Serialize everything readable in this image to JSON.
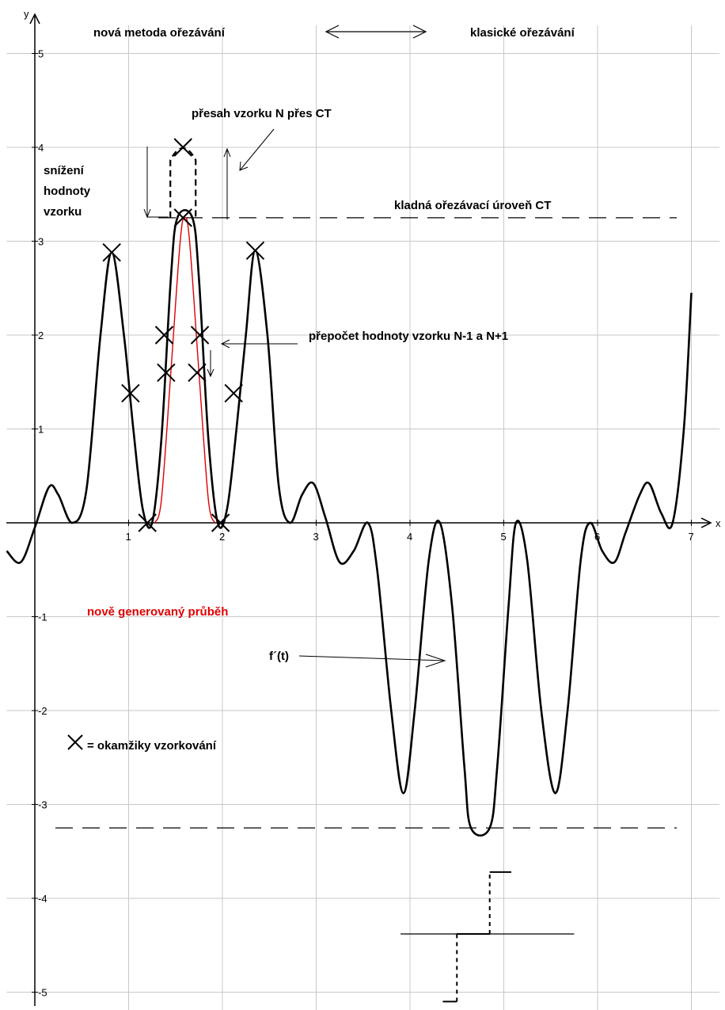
{
  "chart_data": {
    "type": "line",
    "xlabel": "x",
    "ylabel": "y",
    "xlim": [
      -0.3,
      7.3
    ],
    "ylim": [
      -5.2,
      5.3
    ],
    "grid": true,
    "x_ticks": [
      1,
      2,
      3,
      4,
      5,
      6,
      7
    ],
    "y_ticks": [
      -5,
      -4,
      -3,
      -2,
      -1,
      1,
      2,
      3,
      4,
      5
    ],
    "clip_levels": [
      3.25,
      -3.25
    ],
    "series": [
      {
        "color": "#000000",
        "points": [
          [
            -0.3,
            -0.3
          ],
          [
            -0.15,
            -0.42
          ],
          [
            0.0,
            -0.05
          ],
          [
            0.15,
            0.38
          ],
          [
            0.25,
            0.3
          ],
          [
            0.4,
            0.0
          ],
          [
            0.55,
            0.35
          ],
          [
            0.7,
            2.0
          ],
          [
            0.82,
            2.88
          ],
          [
            0.95,
            2.0
          ],
          [
            1.05,
            1.0
          ],
          [
            1.15,
            0.15
          ],
          [
            1.25,
            0.0
          ],
          [
            1.35,
            0.9
          ],
          [
            1.45,
            2.6
          ],
          [
            1.52,
            3.25
          ],
          [
            1.68,
            3.25
          ],
          [
            1.75,
            2.6
          ],
          [
            1.85,
            0.9
          ],
          [
            1.95,
            0.0
          ],
          [
            2.05,
            0.15
          ],
          [
            2.15,
            1.0
          ],
          [
            2.25,
            2.0
          ],
          [
            2.35,
            2.9
          ],
          [
            2.48,
            2.0
          ],
          [
            2.6,
            0.4
          ],
          [
            2.72,
            0.0
          ],
          [
            2.85,
            0.3
          ],
          [
            2.97,
            0.42
          ],
          [
            3.1,
            0.05
          ],
          [
            3.25,
            -0.42
          ],
          [
            3.4,
            -0.3
          ],
          [
            3.55,
            0.0
          ],
          [
            3.65,
            -0.5
          ],
          [
            3.8,
            -2.0
          ],
          [
            3.93,
            -2.88
          ],
          [
            4.05,
            -2.0
          ],
          [
            4.2,
            -0.4
          ],
          [
            4.32,
            0.0
          ],
          [
            4.45,
            -0.9
          ],
          [
            4.58,
            -2.6
          ],
          [
            4.65,
            -3.25
          ],
          [
            4.85,
            -3.25
          ],
          [
            4.93,
            -2.6
          ],
          [
            5.05,
            -0.9
          ],
          [
            5.13,
            0.0
          ],
          [
            5.25,
            -0.4
          ],
          [
            5.4,
            -2.0
          ],
          [
            5.55,
            -2.88
          ],
          [
            5.68,
            -2.0
          ],
          [
            5.82,
            -0.4
          ],
          [
            5.92,
            0.0
          ],
          [
            6.05,
            -0.3
          ],
          [
            6.18,
            -0.42
          ],
          [
            6.3,
            -0.1
          ],
          [
            6.45,
            0.3
          ],
          [
            6.55,
            0.42
          ],
          [
            6.68,
            0.1
          ],
          [
            6.8,
            0.0
          ],
          [
            6.92,
            1.0
          ],
          [
            7.0,
            2.45
          ]
        ]
      },
      {
        "color": "#e00000",
        "points": [
          [
            1.28,
            0.0
          ],
          [
            1.35,
            0.25
          ],
          [
            1.45,
            1.6
          ],
          [
            1.55,
            3.0
          ],
          [
            1.6,
            3.25
          ],
          [
            1.65,
            3.0
          ],
          [
            1.75,
            1.6
          ],
          [
            1.85,
            0.25
          ],
          [
            1.92,
            0.0
          ]
        ]
      }
    ],
    "sample_points": [
      [
        0.82,
        2.88
      ],
      [
        1.02,
        1.38
      ],
      [
        1.2,
        0.0
      ],
      [
        1.38,
        2.0
      ],
      [
        1.4,
        1.6
      ],
      [
        1.58,
        4.0
      ],
      [
        1.58,
        3.25
      ],
      [
        1.76,
        2.0
      ],
      [
        1.73,
        1.6
      ],
      [
        1.98,
        0.0
      ],
      [
        2.12,
        1.38
      ],
      [
        2.35,
        2.9
      ]
    ],
    "overshoot_sample": [
      1.58,
      4.0
    ],
    "fprime_segments": [
      [
        4.35,
        -5.1,
        4.5,
        -5.1
      ],
      [
        4.5,
        -5.1,
        4.5,
        -4.38
      ],
      [
        4.5,
        -4.38,
        4.85,
        -4.38
      ],
      [
        4.85,
        -4.38,
        4.85,
        -3.72
      ],
      [
        4.85,
        -3.72,
        5.08,
        -3.72
      ]
    ],
    "fprime_baseline": [
      3.9,
      -4.38,
      5.75,
      -4.38
    ]
  },
  "labels": {
    "new_method": "nová metoda ořezávání",
    "classic": "klasické ořezávání",
    "overshoot": "přesah vzorku N přes CT",
    "reduce_1": "snížení",
    "reduce_2": "hodnoty",
    "reduce_3": "vzorku",
    "clip_level": "kladná ořezávací úroveň  CT",
    "recalc": "přepočet hodnoty vzorku N-1 a N+1",
    "new_waveform": "nově generovaný průběh",
    "sampling_legend": "=  okamžiky vzorkování",
    "fprime": "f´(t)"
  },
  "colors": {
    "curve": "#000000",
    "new_curve": "#e00000",
    "grid": "#c8c8c8"
  }
}
